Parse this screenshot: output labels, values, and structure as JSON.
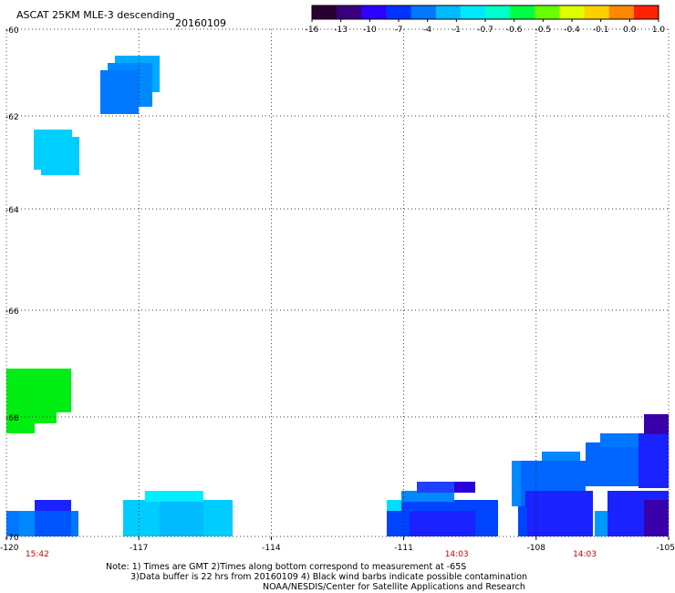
{
  "header": {
    "title": "ASCAT 25KM MLE-3 descending",
    "date": "20160109"
  },
  "colorbar": {
    "colors": [
      "#2a0033",
      "#3a0080",
      "#2d00ff",
      "#0033ff",
      "#0077ff",
      "#00bbff",
      "#00e8ff",
      "#00ffcc",
      "#00ff44",
      "#66ff00",
      "#ddff00",
      "#ffd000",
      "#ff8800",
      "#ff2200"
    ],
    "tick_labels": [
      "-16",
      "-13",
      "-10",
      "-7",
      "-4",
      "-1",
      "-0.7",
      "-0.6",
      "-0.5",
      "-0.4",
      "-0.1",
      "0.0",
      "1.0"
    ]
  },
  "map": {
    "lon_labels": [
      "-120",
      "-117",
      "-114",
      "-111",
      "-108",
      "-105"
    ],
    "lon_label_values": [
      -120,
      -117,
      -114,
      -111,
      -108,
      -105
    ],
    "lat_labels": [
      "-60",
      "-62",
      "-64",
      "-66",
      "-68",
      "-70"
    ],
    "lat_label_values": [
      -60,
      -62,
      -64,
      -66,
      -68,
      -70
    ],
    "grid": "dotted",
    "times": [
      {
        "label": "15:42",
        "lon": -119.3
      },
      {
        "label": "14:03",
        "lon": -109.8
      },
      {
        "label": "14:03",
        "lon": -106.9
      }
    ]
  },
  "notes": {
    "line1": "Note: 1) Times are GMT 2)Times along bottom correspond to measurement at -65S",
    "line2": "3)Data buffer is 22 hrs from 20160109 4) Black wind barbs indicate possible contamination",
    "line3": "NOAA/NESDIS/Center for Satellite Applications and Research"
  }
}
